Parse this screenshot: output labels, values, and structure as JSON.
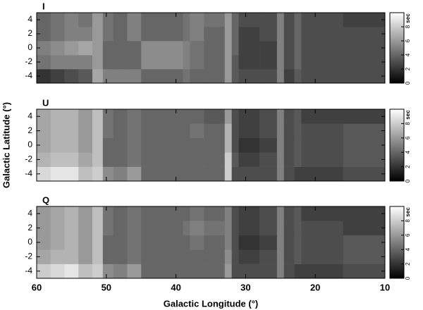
{
  "chart_data": [
    {
      "type": "heatmap",
      "title": "I",
      "colormap": "gray",
      "x_bins": [
        60,
        58,
        56,
        54,
        52,
        50.5,
        49,
        47,
        45,
        39,
        38,
        36,
        33,
        32,
        31,
        28,
        25.5,
        24.5,
        23,
        22,
        16,
        10
      ],
      "y_bins": [
        -5,
        -3,
        -1,
        1,
        3,
        5
      ],
      "values": [
        [
          2,
          2.5,
          3,
          3.5,
          6.5,
          5,
          5,
          5,
          4,
          4.5,
          4,
          4,
          6,
          3.5,
          3,
          3,
          5,
          2.5,
          3.5,
          3,
          3
        ],
        [
          4.5,
          5,
          5,
          5,
          6,
          4,
          4,
          4,
          5.5,
          5,
          4.5,
          4,
          6,
          3.5,
          2.5,
          2.5,
          5,
          3,
          4,
          3,
          3
        ],
        [
          5,
          5.5,
          6,
          6.5,
          6,
          4,
          4,
          4,
          5.5,
          5,
          4.5,
          4,
          6,
          4,
          2.5,
          2.5,
          5,
          3,
          4,
          3,
          3
        ],
        [
          4,
          4.5,
          5,
          5,
          6,
          4.5,
          4,
          5,
          4,
          4.5,
          5,
          4,
          6,
          4,
          2.5,
          3,
          5,
          3,
          4,
          3,
          3
        ],
        [
          4,
          4.5,
          5,
          4.5,
          6,
          4.5,
          4,
          5,
          4,
          4.5,
          5,
          4.5,
          6,
          4,
          3,
          3,
          5,
          3,
          4,
          3,
          2.5
        ]
      ],
      "xlim": [
        60,
        10
      ],
      "xticks": [
        60,
        50,
        40,
        30,
        20,
        10
      ],
      "ylim": [
        -5,
        5
      ],
      "yticks": [
        -4,
        -2,
        0,
        2,
        4
      ],
      "clim": [
        0,
        10
      ],
      "cticks": [
        0,
        2,
        4,
        6,
        8
      ],
      "colorbar_label": "sec"
    },
    {
      "type": "heatmap",
      "title": "U",
      "colormap": "gray",
      "x_bins": [
        60,
        58,
        56,
        54,
        52,
        50.5,
        49,
        47,
        45,
        39,
        38,
        36,
        33,
        32,
        31,
        28,
        25.5,
        24.5,
        23,
        22,
        16,
        10
      ],
      "y_bins": [
        -5,
        -3,
        -1,
        1,
        3,
        5
      ],
      "values": [
        [
          8.5,
          9,
          9,
          7.5,
          8,
          5.5,
          5,
          6,
          4,
          4,
          4,
          4,
          8,
          3,
          3,
          3,
          5,
          3,
          2.5,
          2.5,
          3
        ],
        [
          7,
          7.5,
          7.5,
          6.5,
          7.5,
          4,
          4,
          4.5,
          4,
          4,
          4,
          4,
          8,
          3.5,
          2.5,
          3,
          5,
          3,
          3.5,
          3,
          3.5
        ],
        [
          6.5,
          7,
          7,
          6,
          7.5,
          4,
          4,
          4.5,
          4,
          4,
          4,
          4,
          7,
          3,
          2,
          2.5,
          5,
          3,
          3.5,
          3,
          3.5
        ],
        [
          6.5,
          7,
          7,
          6,
          7.5,
          4.5,
          4,
          4.5,
          4,
          4,
          4.5,
          4,
          7,
          3,
          2.5,
          3,
          5,
          3,
          3.5,
          3,
          3.5
        ],
        [
          6.5,
          7,
          7,
          6,
          7.5,
          4.5,
          4,
          4.5,
          4,
          4,
          4,
          3.5,
          6,
          3,
          2.5,
          3,
          5,
          3,
          3.5,
          2.5,
          2.5
        ]
      ],
      "xlim": [
        60,
        10
      ],
      "xticks": [
        60,
        50,
        40,
        30,
        20,
        10
      ],
      "ylim": [
        -5,
        5
      ],
      "yticks": [
        -4,
        -2,
        0,
        2,
        4
      ],
      "ylabel": "Galactic Latitude (°)",
      "clim": [
        0,
        10
      ],
      "cticks": [
        0,
        2,
        4,
        6,
        8
      ],
      "colorbar_label": "sec"
    },
    {
      "type": "heatmap",
      "title": "Q",
      "colormap": "gray",
      "x_bins": [
        60,
        58,
        56,
        54,
        52,
        50.5,
        49,
        47,
        45,
        39,
        38,
        36,
        33,
        32,
        31,
        28,
        25.5,
        24.5,
        23,
        22,
        16,
        10
      ],
      "y_bins": [
        -5,
        -3,
        -1,
        1,
        3,
        5
      ],
      "values": [
        [
          8,
          8.5,
          9,
          7.5,
          8,
          5.5,
          5,
          6,
          4,
          4,
          4,
          4,
          6,
          3,
          3,
          3,
          5,
          3,
          2.5,
          2.5,
          3
        ],
        [
          6.5,
          7,
          7,
          6,
          7.5,
          4,
          4,
          4.5,
          4,
          4,
          4,
          4,
          5.5,
          3,
          2.5,
          3,
          5,
          3,
          3.5,
          3,
          3.5
        ],
        [
          6,
          6.5,
          7,
          6,
          7.5,
          4,
          4,
          4.5,
          4,
          4,
          4.5,
          4,
          5,
          3,
          2,
          2.5,
          5,
          3,
          3.5,
          3,
          3.5
        ],
        [
          6,
          6.5,
          7,
          6,
          7.5,
          4.5,
          4,
          4.5,
          4,
          4.5,
          5,
          4.5,
          5,
          3,
          2.5,
          3,
          5,
          3,
          3.5,
          3,
          2.5
        ],
        [
          6,
          6.5,
          7,
          6,
          7.5,
          4.5,
          4,
          4.5,
          4,
          4,
          4.5,
          4,
          5,
          3,
          2.5,
          3,
          5,
          3,
          3.5,
          2.5,
          2.5
        ]
      ],
      "xlim": [
        60,
        10
      ],
      "xticks": [
        60,
        50,
        40,
        30,
        20,
        10
      ],
      "ylim": [
        -5,
        5
      ],
      "yticks": [
        -4,
        -2,
        0,
        2,
        4
      ],
      "xlabel": "Galactic Longitude (°)",
      "clim": [
        0,
        10
      ],
      "cticks": [
        0,
        2,
        4,
        6,
        8
      ],
      "colorbar_label": "sec"
    }
  ]
}
